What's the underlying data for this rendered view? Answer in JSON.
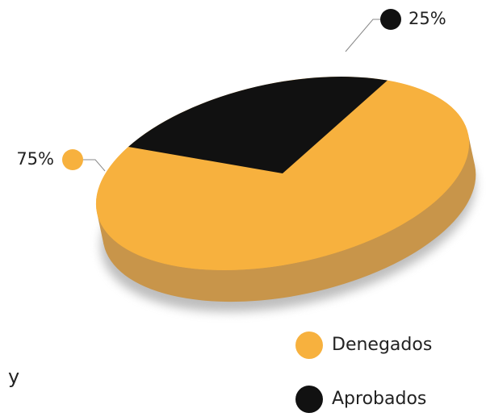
{
  "chart_data": {
    "type": "pie",
    "categories": [
      "Denegados",
      "Aprobados"
    ],
    "values": [
      75,
      25
    ],
    "value_labels": [
      "75%",
      "25%"
    ],
    "colors": [
      "#F7B13E",
      "#111111"
    ],
    "legend": "bottom-right",
    "annotation": "y"
  }
}
